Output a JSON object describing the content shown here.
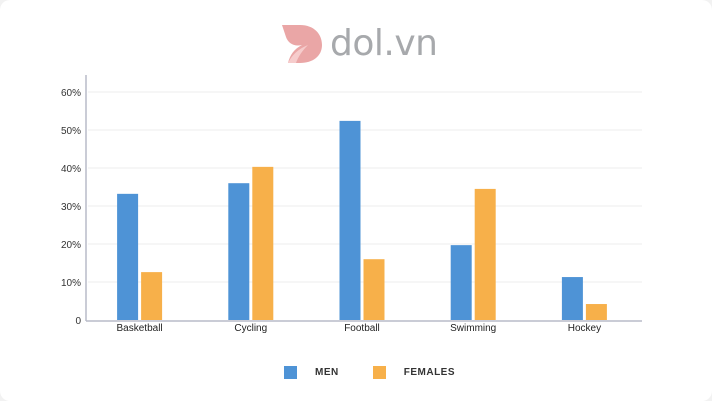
{
  "brand": {
    "name": "dol.vn",
    "color": "#eaa6a6",
    "text_color": "#a7a9ac"
  },
  "colors": {
    "men": "#4e93d6",
    "females": "#f7b04a",
    "grid": "#eeeeee",
    "axis": "#b8bcc8"
  },
  "chart_data": {
    "type": "bar",
    "title": "",
    "xlabel": "",
    "ylabel": "",
    "categories": [
      "Basketball",
      "Cycling",
      "Football",
      "Swimming",
      "Hockey"
    ],
    "series": [
      {
        "name": "MEN",
        "values": [
          33.2,
          36,
          52.4,
          19.7,
          11.3
        ]
      },
      {
        "name": "FEMALES",
        "values": [
          12.6,
          40.3,
          16,
          34.5,
          4.2
        ]
      }
    ],
    "yticks": [
      "0",
      "10%",
      "20%",
      "30%",
      "40%",
      "50%",
      "60%"
    ],
    "ylim": [
      0,
      60
    ],
    "grid": true,
    "legend_position": "bottom"
  },
  "legend": {
    "items": [
      {
        "label": "MEN"
      },
      {
        "label": "FEMALES"
      }
    ]
  }
}
